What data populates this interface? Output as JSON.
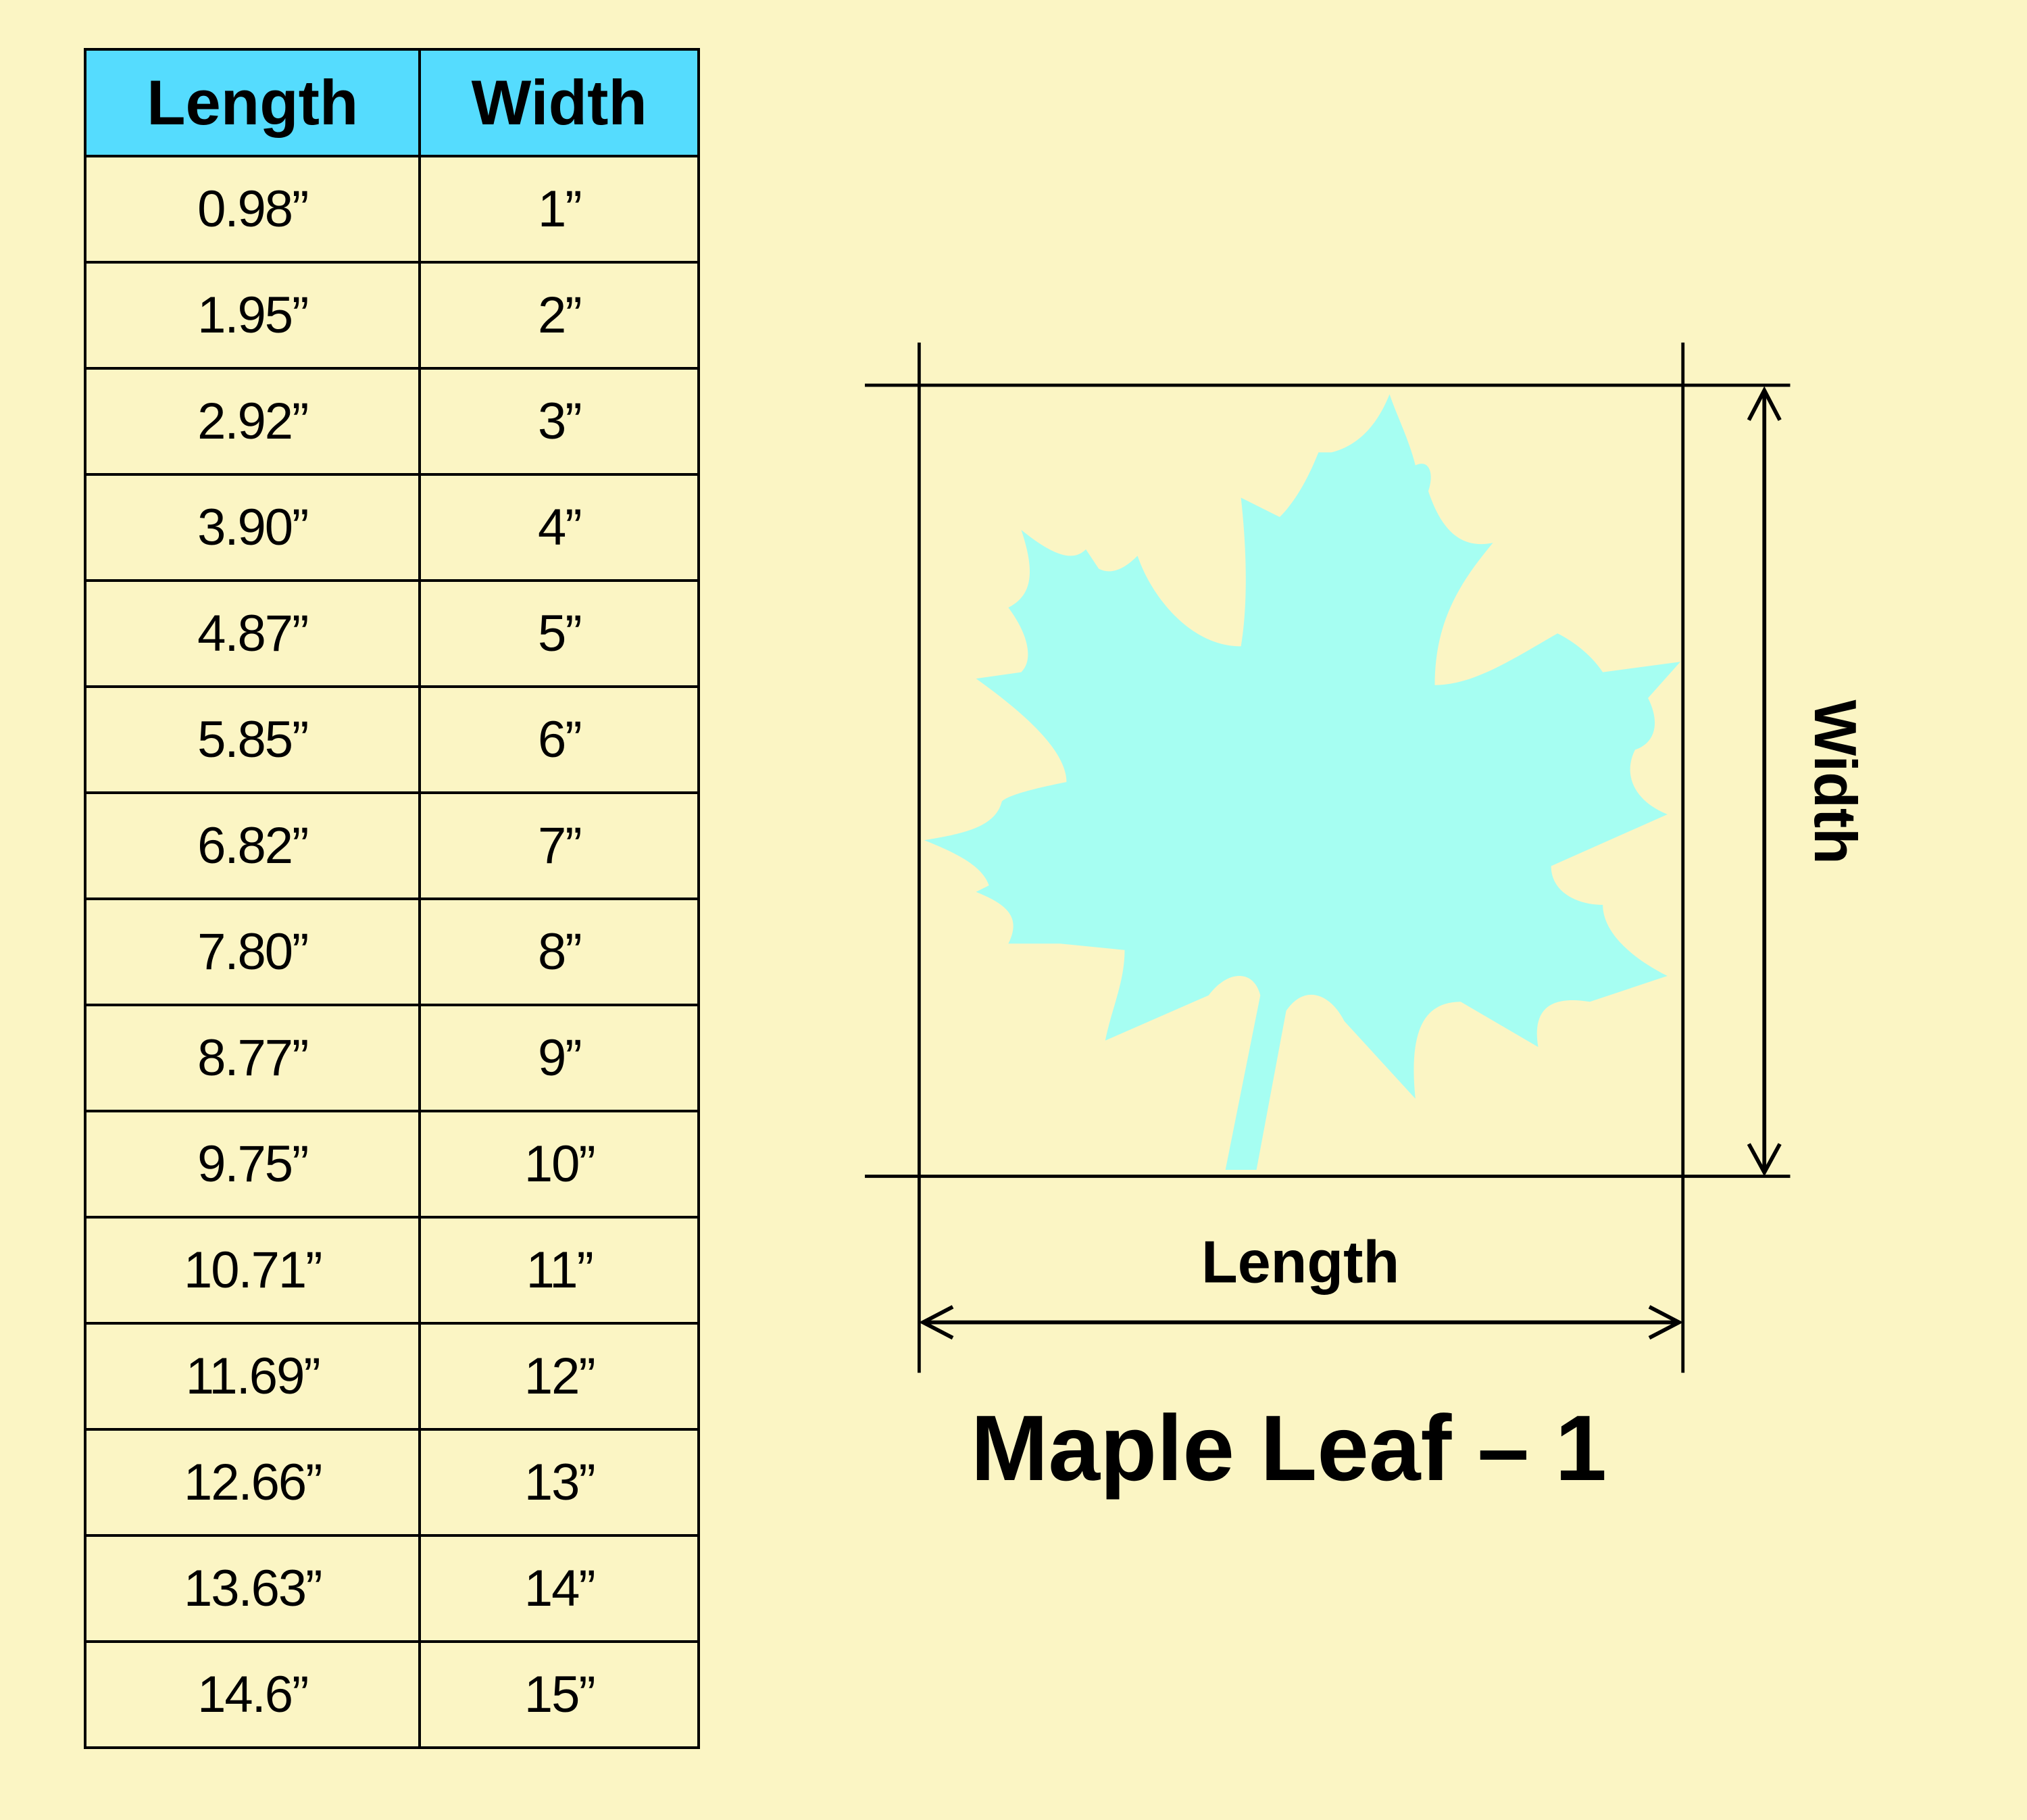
{
  "table": {
    "headers": [
      "Length",
      "Width"
    ],
    "rows": [
      [
        "0.98”",
        "1”"
      ],
      [
        "1.95”",
        "2”"
      ],
      [
        "2.92”",
        "3”"
      ],
      [
        "3.90”",
        "4”"
      ],
      [
        "4.87”",
        "5”"
      ],
      [
        "5.85”",
        "6”"
      ],
      [
        "6.82”",
        "7”"
      ],
      [
        "7.80”",
        "8”"
      ],
      [
        "8.77”",
        "9”"
      ],
      [
        "9.75”",
        "10”"
      ],
      [
        "10.71”",
        "11”"
      ],
      [
        "11.69”",
        "12”"
      ],
      [
        "12.66”",
        "13”"
      ],
      [
        "13.63”",
        "14”"
      ],
      [
        "14.6”",
        "15”"
      ]
    ]
  },
  "diagram": {
    "length_label": "Length",
    "width_label": "Width",
    "title": "Maple Leaf – 1"
  },
  "colors": {
    "background": "#fbf5c4",
    "header": "#55dcfe",
    "leaf": "#a6fef2"
  }
}
